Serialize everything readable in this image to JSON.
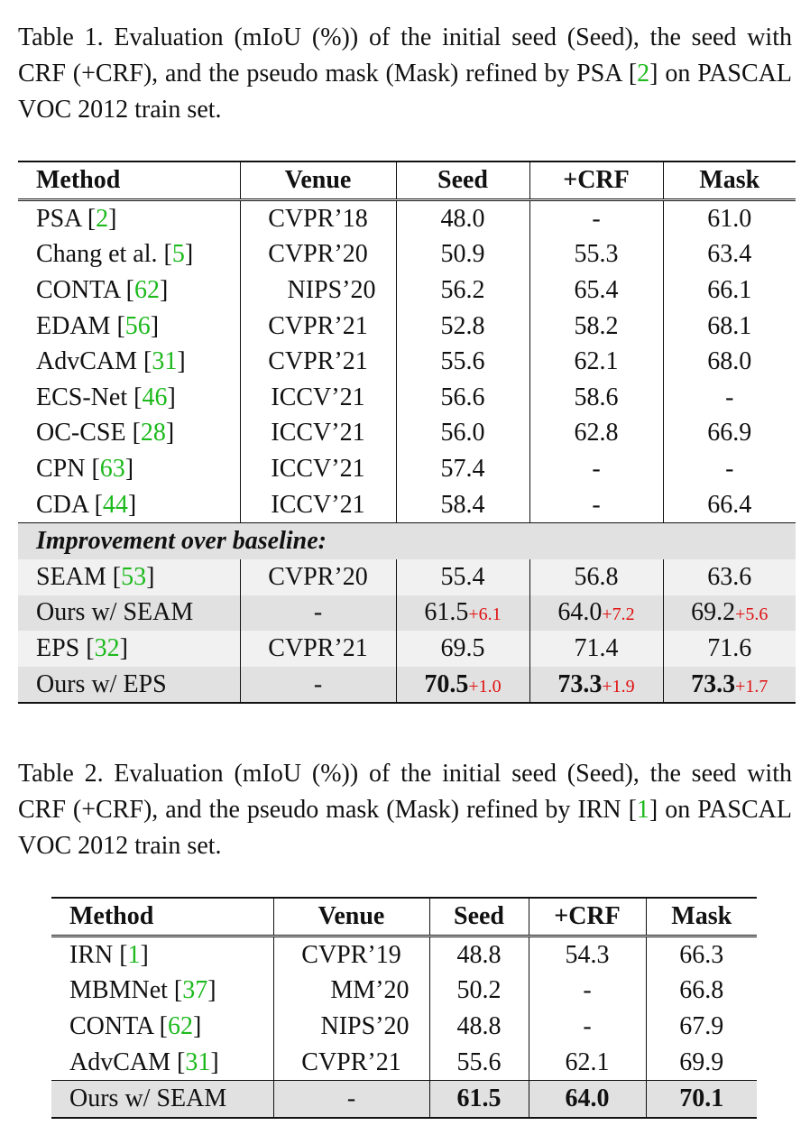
{
  "caption1": {
    "pre": "Table 1.  Evaluation (mIoU (%)) of the initial seed (Seed), the seed with CRF (+CRF), and the pseudo mask (Mask) refined by PSA [",
    "cite": "2",
    "post": "] on PASCAL VOC 2012 train set."
  },
  "table1": {
    "headers": [
      "Method",
      "Venue",
      "Seed",
      "+CRF",
      "Mask"
    ],
    "rows": [
      {
        "name": "PSA [",
        "cite": "2",
        "close": "]",
        "venue": "CVPR’18",
        "seed": "48.0",
        "crf": "-",
        "mask": "61.0"
      },
      {
        "name": "Chang et al. [",
        "cite": "5",
        "close": "]",
        "venue": "CVPR’20",
        "seed": "50.9",
        "crf": "55.3",
        "mask": "63.4"
      },
      {
        "name": "CONTA [",
        "cite": "62",
        "close": "]",
        "venue": "NIPS’20",
        "seed": "56.2",
        "crf": "65.4",
        "mask": "66.1"
      },
      {
        "name": "EDAM [",
        "cite": "56",
        "close": "]",
        "venue": "CVPR’21",
        "seed": "52.8",
        "crf": "58.2",
        "mask": "68.1"
      },
      {
        "name": "AdvCAM [",
        "cite": "31",
        "close": "]",
        "venue": "CVPR’21",
        "seed": "55.6",
        "crf": "62.1",
        "mask": "68.0"
      },
      {
        "name": "ECS-Net [",
        "cite": "46",
        "close": "]",
        "venue": "ICCV’21",
        "seed": "56.6",
        "crf": "58.6",
        "mask": "-"
      },
      {
        "name": "OC-CSE [",
        "cite": "28",
        "close": "]",
        "venue": "ICCV’21",
        "seed": "56.0",
        "crf": "62.8",
        "mask": "66.9"
      },
      {
        "name": "CPN [",
        "cite": "63",
        "close": "]",
        "venue": "ICCV’21",
        "seed": "57.4",
        "crf": "-",
        "mask": "-"
      },
      {
        "name": "CDA [",
        "cite": "44",
        "close": "]",
        "venue": "ICCV’21",
        "seed": "58.4",
        "crf": "-",
        "mask": "66.4"
      }
    ],
    "section_label": "Improvement over baseline:",
    "improvement_rows": [
      {
        "name": "SEAM [",
        "cite": "53",
        "close": "]",
        "venue": "CVPR’20",
        "seed": "55.4",
        "crf": "56.8",
        "mask": "63.6"
      },
      {
        "name": "Ours w/ SEAM",
        "venue": "-",
        "seed": "61.5",
        "seed_delta": "+6.1",
        "crf": "64.0",
        "crf_delta": "+7.2",
        "mask": "69.2",
        "mask_delta": "+5.6"
      },
      {
        "name": "EPS [",
        "cite": "32",
        "close": "]",
        "venue": "CVPR’21",
        "seed": "69.5",
        "crf": "71.4",
        "mask": "71.6"
      },
      {
        "name": "Ours w/ EPS",
        "venue": "-",
        "seed": "70.5",
        "seed_delta": "+1.0",
        "crf": "73.3",
        "crf_delta": "+1.9",
        "mask": "73.3",
        "mask_delta": "+1.7"
      }
    ]
  },
  "caption2": {
    "pre": "Table 2. Evaluation (mIoU (%)) of the initial seed (Seed), the seed with CRF (+CRF), and the pseudo mask (Mask) refined by IRN [",
    "cite": "1",
    "post": "] on PASCAL VOC 2012 train set."
  },
  "table2": {
    "headers": [
      "Method",
      "Venue",
      "Seed",
      "+CRF",
      "Mask"
    ],
    "rows": [
      {
        "name": "IRN [",
        "cite": "1",
        "close": "]",
        "venue": "CVPR’19",
        "seed": "48.8",
        "crf": "54.3",
        "mask": "66.3"
      },
      {
        "name": "MBMNet [",
        "cite": "37",
        "close": "]",
        "venue": "MM’20",
        "seed": "50.2",
        "crf": "-",
        "mask": "66.8"
      },
      {
        "name": "CONTA [",
        "cite": "62",
        "close": "]",
        "venue": "NIPS’20",
        "seed": "48.8",
        "crf": "-",
        "mask": "67.9"
      },
      {
        "name": "AdvCAM [",
        "cite": "31",
        "close": "]",
        "venue": "CVPR’21",
        "seed": "55.6",
        "crf": "62.1",
        "mask": "69.9"
      },
      {
        "name": "Ours w/ SEAM",
        "venue": "-",
        "seed": "61.5",
        "crf": "64.0",
        "mask": "70.1"
      }
    ]
  }
}
